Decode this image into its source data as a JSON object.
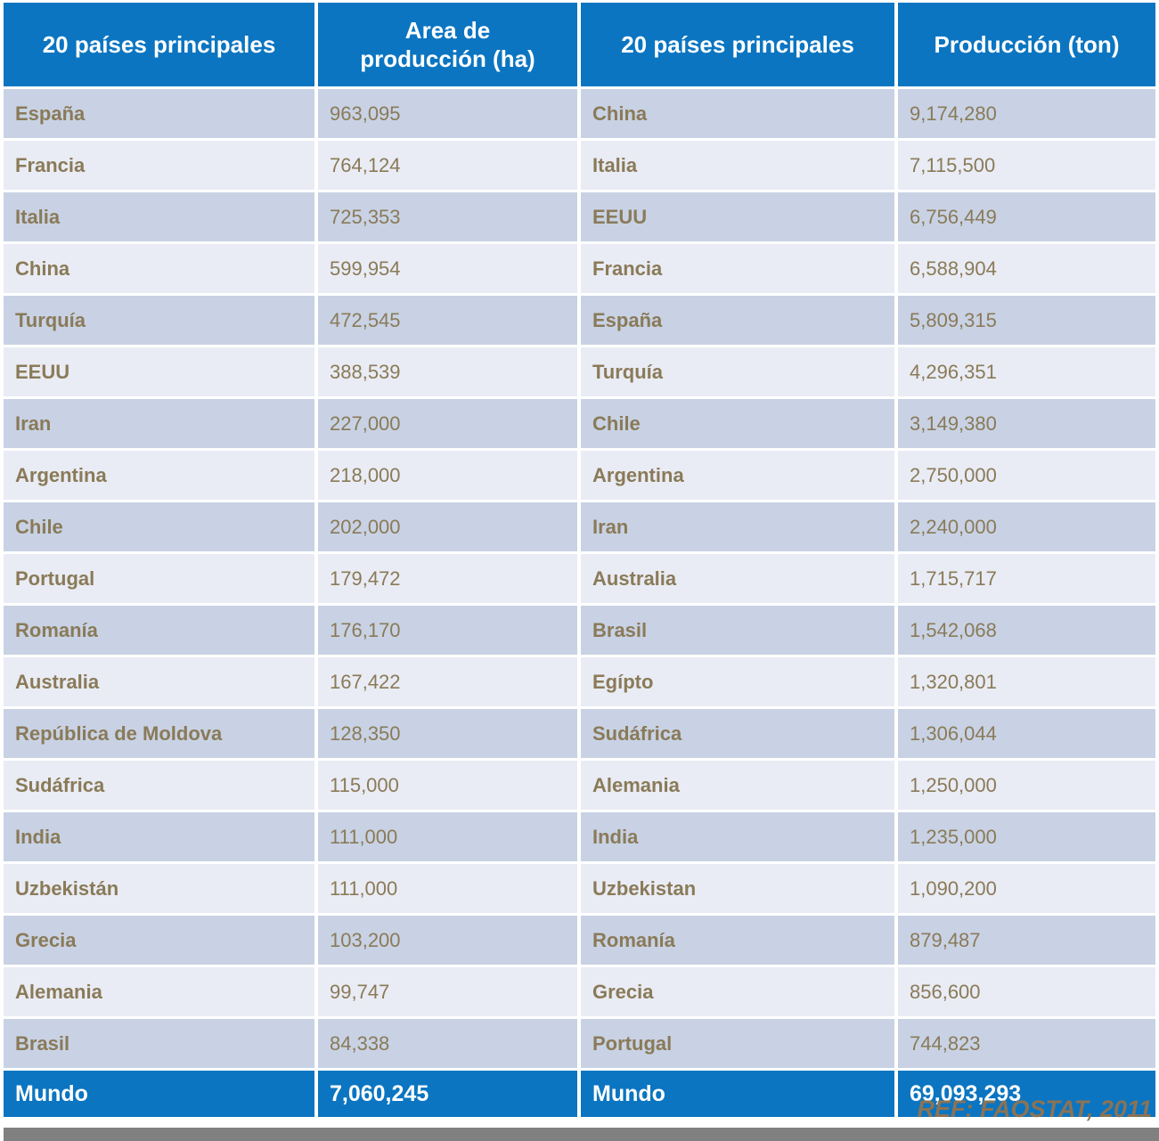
{
  "table": {
    "headers": [
      {
        "label": "20 países principales"
      },
      {
        "label": "Area de\nproducción (ha)"
      },
      {
        "label": "20 países principales"
      },
      {
        "label": "Producción (ton)"
      }
    ],
    "rows": [
      {
        "area_country": "España",
        "area_value": "963,095",
        "prod_country": "China",
        "prod_value": "9,174,280"
      },
      {
        "area_country": "Francia",
        "area_value": "764,124",
        "prod_country": "Italia",
        "prod_value": "7,115,500"
      },
      {
        "area_country": "Italia",
        "area_value": "725,353",
        "prod_country": "EEUU",
        "prod_value": "6,756,449"
      },
      {
        "area_country": "China",
        "area_value": "599,954",
        "prod_country": "Francia",
        "prod_value": "6,588,904"
      },
      {
        "area_country": "Turquía",
        "area_value": "472,545",
        "prod_country": "España",
        "prod_value": "5,809,315"
      },
      {
        "area_country": "EEUU",
        "area_value": "388,539",
        "prod_country": "Turquía",
        "prod_value": "4,296,351"
      },
      {
        "area_country": "Iran",
        "area_value": "227,000",
        "prod_country": "Chile",
        "prod_value": "3,149,380"
      },
      {
        "area_country": "Argentina",
        "area_value": "218,000",
        "prod_country": "Argentina",
        "prod_value": "2,750,000"
      },
      {
        "area_country": "Chile",
        "area_value": "202,000",
        "prod_country": "Iran",
        "prod_value": "2,240,000"
      },
      {
        "area_country": "Portugal",
        "area_value": "179,472",
        "prod_country": "Australia",
        "prod_value": "1,715,717"
      },
      {
        "area_country": "Romanía",
        "area_value": "176,170",
        "prod_country": "Brasil",
        "prod_value": "1,542,068"
      },
      {
        "area_country": "Australia",
        "area_value": "167,422",
        "prod_country": "Egípto",
        "prod_value": "1,320,801"
      },
      {
        "area_country": "República de Moldova",
        "area_value": "128,350",
        "prod_country": "Sudáfrica",
        "prod_value": "1,306,044"
      },
      {
        "area_country": "Sudáfrica",
        "area_value": "115,000",
        "prod_country": "Alemania",
        "prod_value": "1,250,000"
      },
      {
        "area_country": "India",
        "area_value": "111,000",
        "prod_country": "India",
        "prod_value": "1,235,000"
      },
      {
        "area_country": "Uzbekistán",
        "area_value": "111,000",
        "prod_country": "Uzbekistan",
        "prod_value": "1,090,200"
      },
      {
        "area_country": "Grecia",
        "area_value": "103,200",
        "prod_country": "Romanía",
        "prod_value": "879,487"
      },
      {
        "area_country": "Alemania",
        "area_value": "99,747",
        "prod_country": "Grecia",
        "prod_value": "856,600"
      },
      {
        "area_country": "Brasil",
        "area_value": "84,338",
        "prod_country": "Portugal",
        "prod_value": "744,823"
      }
    ],
    "footer": {
      "area_label": "Mundo",
      "area_total": "7,060,245",
      "prod_label": "Mundo",
      "prod_total": "69,093,293"
    }
  },
  "reference": "REF: FAOSTAT, 2011",
  "colors": {
    "header_blue": "#0b75c1",
    "row_dark": "#c8d2e4",
    "row_light": "#e9ecf4",
    "text_brown": "#8a7a58",
    "reference_brown": "#8a7355",
    "bottom_bar_gray": "#808080",
    "header_text": "#ffffff"
  },
  "chart_data": {
    "type": "table",
    "tables": [
      {
        "name": "Area de producción (ha)",
        "categories": [
          "España",
          "Francia",
          "Italia",
          "China",
          "Turquía",
          "EEUU",
          "Iran",
          "Argentina",
          "Chile",
          "Portugal",
          "Romanía",
          "Australia",
          "República de Moldova",
          "Sudáfrica",
          "India",
          "Uzbekistán",
          "Grecia",
          "Alemania",
          "Brasil"
        ],
        "values": [
          963095,
          764124,
          725353,
          599954,
          472545,
          388539,
          227000,
          218000,
          202000,
          179472,
          176170,
          167422,
          128350,
          115000,
          111000,
          111000,
          103200,
          99747,
          84338
        ],
        "total_label": "Mundo",
        "total": 7060245
      },
      {
        "name": "Producción (ton)",
        "categories": [
          "China",
          "Italia",
          "EEUU",
          "Francia",
          "España",
          "Turquía",
          "Chile",
          "Argentina",
          "Iran",
          "Australia",
          "Brasil",
          "Egípto",
          "Sudáfrica",
          "Alemania",
          "India",
          "Uzbekistan",
          "Romanía",
          "Grecia",
          "Portugal"
        ],
        "values": [
          9174280,
          7115500,
          6756449,
          6588904,
          5809315,
          4296351,
          3149380,
          2750000,
          2240000,
          1715717,
          1542068,
          1320801,
          1306044,
          1250000,
          1235000,
          1090200,
          879487,
          856600,
          744823
        ],
        "total_label": "Mundo",
        "total": 69093293
      }
    ],
    "title": "20 países principales",
    "source": "REF: FAOSTAT, 2011"
  }
}
